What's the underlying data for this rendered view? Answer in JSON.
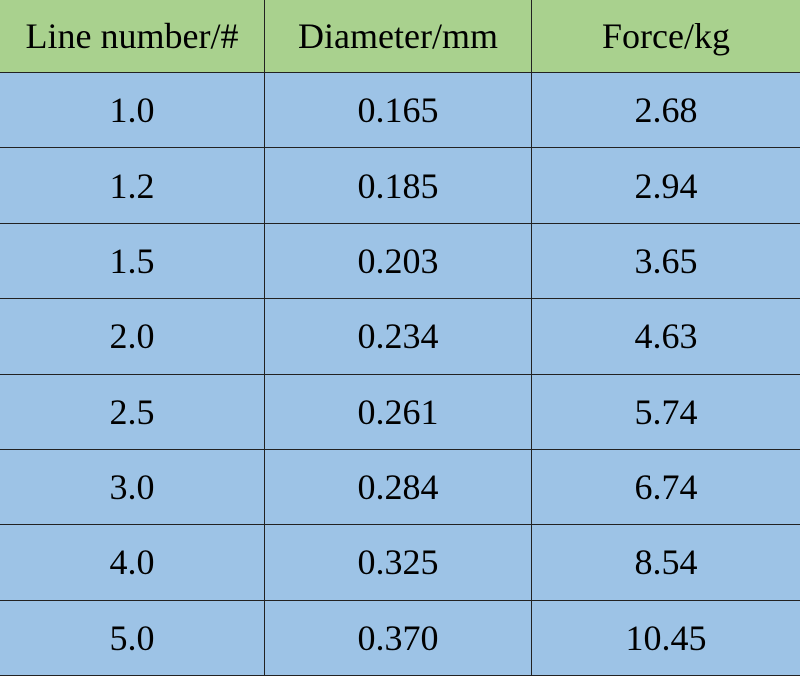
{
  "table": {
    "header": [
      "Line number/#",
      "Diameter/mm",
      "Force/kg"
    ],
    "rows": [
      [
        "1.0",
        "0.165",
        "2.68"
      ],
      [
        "1.2",
        "0.185",
        "2.94"
      ],
      [
        "1.5",
        "0.203",
        "3.65"
      ],
      [
        "2.0",
        "0.234",
        "4.63"
      ],
      [
        "2.5",
        "0.261",
        "5.74"
      ],
      [
        "3.0",
        "0.284",
        "6.74"
      ],
      [
        "4.0",
        "0.325",
        "8.54"
      ],
      [
        "5.0",
        "0.370",
        "10.45"
      ]
    ]
  }
}
